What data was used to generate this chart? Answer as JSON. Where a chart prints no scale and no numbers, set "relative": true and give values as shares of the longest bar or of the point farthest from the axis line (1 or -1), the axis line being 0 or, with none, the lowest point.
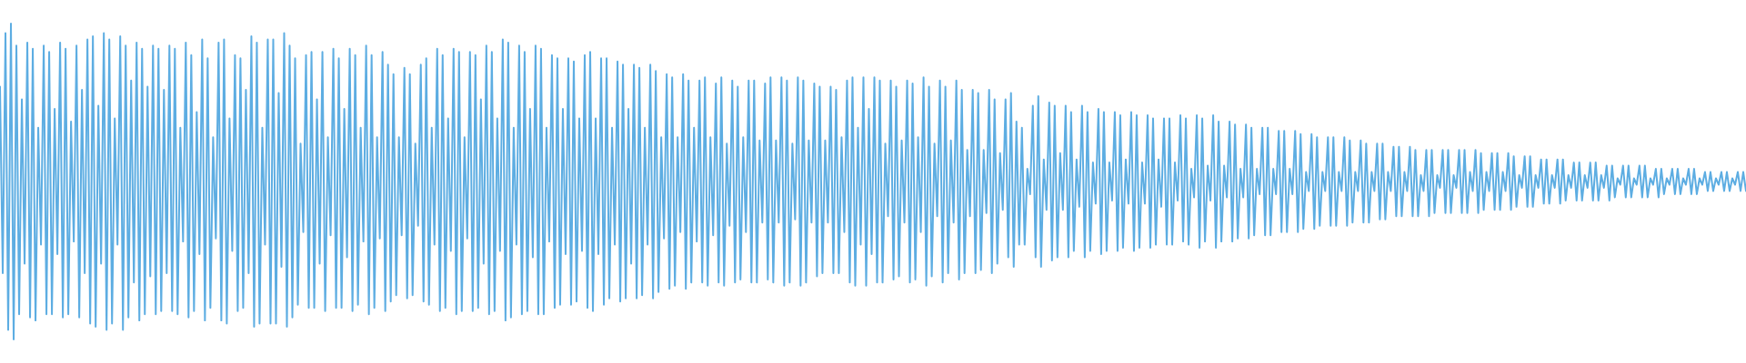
{
  "chart_data": {
    "type": "line",
    "relative": true,
    "tick_labels": false,
    "color": "#5dade2",
    "categories": [
      null,
      null,
      null,
      null,
      null,
      null,
      null,
      null,
      null,
      null,
      null,
      null,
      null,
      null,
      null,
      null,
      null,
      null,
      null,
      null,
      null,
      null,
      null,
      null,
      null,
      null,
      null,
      null,
      null,
      null,
      null,
      null,
      null,
      null,
      null,
      null,
      null,
      null,
      null,
      null,
      null,
      null,
      null,
      null,
      null,
      null,
      null,
      null,
      null,
      null,
      null,
      null,
      null,
      null,
      null,
      null,
      null,
      null,
      null,
      null,
      null,
      null,
      null,
      null,
      null,
      null,
      null,
      null,
      null,
      null,
      null,
      null,
      null,
      null,
      null,
      null,
      null,
      null,
      null,
      null,
      null,
      null,
      null,
      null,
      null,
      null,
      null,
      null,
      null,
      null,
      null,
      null,
      null,
      null,
      null,
      null,
      null,
      null,
      null,
      null,
      null,
      null,
      null,
      null,
      null,
      null,
      null,
      null,
      null,
      null,
      null,
      null,
      null,
      null,
      null,
      null,
      null,
      null,
      null,
      null,
      null,
      null,
      null,
      null,
      null,
      null,
      null,
      null,
      null,
      null,
      null,
      null,
      null,
      null,
      null,
      null,
      null,
      null,
      null,
      null,
      null,
      null,
      null,
      null,
      null,
      null,
      null,
      null,
      null,
      null,
      null,
      null,
      null,
      null,
      null,
      null,
      null,
      null,
      null,
      null,
      null,
      null,
      null,
      null,
      null,
      null,
      null,
      null,
      null,
      null,
      null,
      null,
      null,
      null,
      null,
      null,
      null,
      null,
      null,
      null,
      null,
      null,
      null,
      null,
      null,
      null,
      null,
      null,
      null,
      null,
      null,
      null,
      null,
      null,
      null,
      null,
      null,
      null,
      null,
      null,
      null,
      null,
      null,
      null,
      null,
      null,
      null,
      null,
      null,
      null,
      null,
      null,
      null,
      null,
      null,
      null,
      null,
      null,
      null,
      null,
      null,
      null,
      null,
      null,
      null,
      null,
      null,
      null,
      null,
      null,
      null,
      null,
      null,
      null,
      null,
      null,
      null,
      null,
      null,
      null,
      null,
      null,
      null,
      null,
      null,
      null,
      null,
      null,
      null,
      null,
      null,
      null,
      null,
      null,
      null,
      null,
      null,
      null,
      null,
      null,
      null,
      null,
      null,
      null,
      null,
      null,
      null,
      null,
      null,
      null,
      null,
      null,
      null,
      null,
      null,
      null,
      null,
      null,
      null,
      null,
      null,
      null,
      null,
      null,
      null,
      null,
      null,
      null,
      null,
      null,
      null,
      null,
      null,
      null,
      null,
      null,
      null,
      null,
      null,
      null,
      null,
      null,
      null,
      null,
      null,
      null,
      null,
      null,
      null,
      null,
      null,
      null,
      null,
      null,
      null,
      null,
      null,
      null,
      null,
      null,
      null,
      null,
      null,
      null,
      null,
      null,
      null,
      null,
      null,
      null,
      null,
      null,
      null,
      null,
      null,
      null,
      null,
      null,
      null,
      null,
      null,
      null,
      null,
      null,
      null,
      null,
      null,
      null,
      null,
      null,
      null,
      null,
      null,
      null,
      null,
      null,
      null,
      null,
      null,
      null,
      null,
      null,
      null,
      null,
      null,
      null,
      null,
      null,
      null,
      null,
      null,
      null,
      null,
      null,
      null,
      null,
      null,
      null,
      null,
      null,
      null,
      null,
      null,
      null,
      null,
      null,
      null,
      null,
      null,
      null,
      null,
      null,
      null,
      null,
      null,
      null,
      null,
      null,
      null,
      null,
      null,
      null,
      null,
      null,
      null,
      null,
      null,
      null,
      null,
      null,
      null,
      null,
      null,
      null,
      null,
      null,
      null,
      null,
      null,
      null,
      null,
      null,
      null,
      null,
      null,
      null,
      null,
      null,
      null,
      null,
      null,
      null,
      null,
      null,
      null,
      null,
      null,
      null,
      null,
      null,
      null,
      null,
      null,
      null,
      null,
      null,
      null,
      null,
      null,
      null,
      null,
      null,
      null,
      null,
      null,
      null,
      null,
      null,
      null,
      null,
      null,
      null,
      null,
      null,
      null,
      null,
      null,
      null,
      null,
      null,
      null,
      null,
      null,
      null,
      null,
      null,
      null,
      null,
      null,
      null,
      null,
      null,
      null,
      null,
      null,
      null,
      null,
      null,
      null,
      null,
      null,
      null,
      null,
      null,
      null,
      null,
      null,
      null,
      null,
      null,
      null,
      null,
      null,
      null,
      null,
      null,
      null,
      null,
      null,
      null,
      null,
      null,
      null,
      null,
      null,
      null,
      null,
      null,
      null,
      null,
      null,
      null,
      null,
      null,
      null,
      null,
      null,
      null,
      null,
      null,
      null,
      null,
      null,
      null,
      null,
      null,
      null,
      null,
      null,
      null,
      null,
      null,
      null,
      null,
      null,
      null,
      null,
      null,
      null,
      null,
      null,
      null,
      null,
      null,
      null,
      null,
      null,
      null,
      null,
      null,
      null,
      null,
      null,
      null,
      null,
      null,
      null,
      null,
      null,
      null,
      null,
      null,
      null,
      null,
      null,
      null,
      null,
      null,
      null,
      null,
      null,
      null,
      null,
      null,
      null,
      null,
      null,
      null,
      null,
      null,
      null,
      null,
      null,
      null,
      null,
      null,
      null,
      null,
      null,
      null,
      null,
      null,
      null,
      null,
      null,
      null,
      null,
      null,
      null,
      null,
      null,
      null,
      null,
      null,
      null,
      null,
      null,
      null,
      null,
      null,
      null,
      null,
      null,
      null,
      null,
      null,
      null,
      null,
      null,
      null,
      null,
      null,
      null,
      null,
      null,
      null,
      null,
      null,
      null,
      null
    ],
    "values": [
      0.8,
      0.21,
      0.97,
      0.03,
      1.0,
      0.0,
      0.93,
      0.08,
      0.76,
      0.24,
      0.94,
      0.07,
      0.92,
      0.06,
      0.67,
      0.3,
      0.93,
      0.08,
      0.91,
      0.08,
      0.73,
      0.27,
      0.94,
      0.07,
      0.92,
      0.08,
      0.69,
      0.31,
      0.93,
      0.07,
      0.79,
      0.21,
      0.95,
      0.05,
      0.96,
      0.04,
      0.74,
      0.24,
      0.97,
      0.03,
      0.95,
      0.05,
      0.7,
      0.3,
      0.96,
      0.03,
      0.93,
      0.07,
      0.82,
      0.18,
      0.94,
      0.06,
      0.92,
      0.08,
      0.8,
      0.2,
      0.93,
      0.08,
      0.92,
      0.09,
      0.79,
      0.21,
      0.93,
      0.09,
      0.92,
      0.08,
      0.67,
      0.31,
      0.94,
      0.07,
      0.9,
      0.09,
      0.72,
      0.27,
      0.95,
      0.06,
      0.89,
      0.1,
      0.64,
      0.32,
      0.94,
      0.06,
      0.95,
      0.05,
      0.7,
      0.28,
      0.9,
      0.09,
      0.89,
      0.1,
      0.79,
      0.21,
      0.96,
      0.04,
      0.94,
      0.05,
      0.67,
      0.3,
      0.95,
      0.05,
      0.95,
      0.05,
      0.78,
      0.23,
      0.97,
      0.04,
      0.93,
      0.07,
      0.89,
      0.11,
      0.62,
      0.34,
      0.9,
      0.1,
      0.91,
      0.1,
      0.76,
      0.24,
      0.91,
      0.09,
      0.64,
      0.33,
      0.92,
      0.1,
      0.89,
      0.1,
      0.73,
      0.26,
      0.92,
      0.09,
      0.9,
      0.11,
      0.67,
      0.31,
      0.93,
      0.08,
      0.9,
      0.1,
      0.64,
      0.32,
      0.91,
      0.09,
      0.87,
      0.12,
      0.84,
      0.14,
      0.64,
      0.33,
      0.86,
      0.13,
      0.84,
      0.14,
      0.62,
      0.36,
      0.87,
      0.12,
      0.89,
      0.11,
      0.67,
      0.3,
      0.92,
      0.09,
      0.9,
      0.1,
      0.7,
      0.28,
      0.92,
      0.08,
      0.91,
      0.09,
      0.64,
      0.32,
      0.91,
      0.09,
      0.9,
      0.1,
      0.76,
      0.24,
      0.93,
      0.08,
      0.91,
      0.09,
      0.7,
      0.28,
      0.95,
      0.06,
      0.94,
      0.07,
      0.67,
      0.3,
      0.93,
      0.08,
      0.91,
      0.09,
      0.73,
      0.26,
      0.93,
      0.08,
      0.92,
      0.08,
      0.67,
      0.31,
      0.9,
      0.1,
      0.89,
      0.11,
      0.73,
      0.27,
      0.89,
      0.11,
      0.88,
      0.12,
      0.7,
      0.28,
      0.9,
      0.1,
      0.91,
      0.09,
      0.7,
      0.27,
      0.89,
      0.11,
      0.89,
      0.13,
      0.67,
      0.3,
      0.88,
      0.12,
      0.87,
      0.13,
      0.73,
      0.24,
      0.87,
      0.13,
      0.86,
      0.14,
      0.67,
      0.3,
      0.87,
      0.13,
      0.85,
      0.15,
      0.64,
      0.32,
      0.84,
      0.16,
      0.83,
      0.17,
      0.64,
      0.34,
      0.84,
      0.16,
      0.82,
      0.18,
      0.67,
      0.31,
      0.82,
      0.18,
      0.83,
      0.17,
      0.64,
      0.33,
      0.81,
      0.18,
      0.83,
      0.17,
      0.62,
      0.36,
      0.82,
      0.18,
      0.8,
      0.19,
      0.64,
      0.34,
      0.82,
      0.18,
      0.82,
      0.18,
      0.63,
      0.37,
      0.81,
      0.19,
      0.83,
      0.18,
      0.63,
      0.37,
      0.83,
      0.17,
      0.82,
      0.18,
      0.62,
      0.38,
      0.83,
      0.17,
      0.82,
      0.18,
      0.63,
      0.37,
      0.81,
      0.2,
      0.8,
      0.21,
      0.63,
      0.37,
      0.8,
      0.21,
      0.79,
      0.21,
      0.64,
      0.34,
      0.82,
      0.18,
      0.83,
      0.17,
      0.67,
      0.3,
      0.83,
      0.17,
      0.73,
      0.27,
      0.83,
      0.18,
      0.82,
      0.18,
      0.62,
      0.39,
      0.82,
      0.19,
      0.8,
      0.2,
      0.63,
      0.37,
      0.82,
      0.18,
      0.81,
      0.19,
      0.64,
      0.34,
      0.83,
      0.17,
      0.8,
      0.2,
      0.62,
      0.39,
      0.82,
      0.18,
      0.8,
      0.21,
      0.63,
      0.37,
      0.82,
      0.19,
      0.79,
      0.21,
      0.6,
      0.39,
      0.79,
      0.21,
      0.78,
      0.22,
      0.6,
      0.4,
      0.79,
      0.21,
      0.76,
      0.24,
      0.59,
      0.41,
      0.76,
      0.26,
      0.78,
      0.23,
      0.69,
      0.3,
      0.67,
      0.3,
      0.54,
      0.46,
      0.74,
      0.26,
      0.77,
      0.23,
      0.57,
      0.41,
      0.75,
      0.25,
      0.74,
      0.26,
      0.59,
      0.41,
      0.74,
      0.26,
      0.72,
      0.28,
      0.57,
      0.42,
      0.74,
      0.26,
      0.72,
      0.28,
      0.56,
      0.43,
      0.73,
      0.27,
      0.72,
      0.28,
      0.56,
      0.44,
      0.72,
      0.28,
      0.71,
      0.29,
      0.57,
      0.43,
      0.72,
      0.28,
      0.71,
      0.29,
      0.56,
      0.43,
      0.71,
      0.29,
      0.7,
      0.3,
      0.57,
      0.42,
      0.7,
      0.3,
      0.7,
      0.3,
      0.56,
      0.44,
      0.71,
      0.31,
      0.7,
      0.3,
      0.54,
      0.45,
      0.71,
      0.29,
      0.7,
      0.31,
      0.55,
      0.44,
      0.71,
      0.29,
      0.69,
      0.31,
      0.55,
      0.45,
      0.69,
      0.31,
      0.68,
      0.32,
      0.54,
      0.45,
      0.68,
      0.32,
      0.67,
      0.33,
      0.54,
      0.46,
      0.67,
      0.33,
      0.67,
      0.33,
      0.54,
      0.46,
      0.66,
      0.34,
      0.66,
      0.34,
      0.54,
      0.46,
      0.66,
      0.34,
      0.65,
      0.35,
      0.53,
      0.47,
      0.65,
      0.35,
      0.64,
      0.36,
      0.53,
      0.47,
      0.64,
      0.36,
      0.64,
      0.36,
      0.53,
      0.47,
      0.64,
      0.36,
      0.63,
      0.37,
      0.53,
      0.47,
      0.63,
      0.37,
      0.62,
      0.37,
      0.53,
      0.47,
      0.62,
      0.38,
      0.62,
      0.38,
      0.53,
      0.47,
      0.61,
      0.39,
      0.61,
      0.39,
      0.53,
      0.47,
      0.61,
      0.39,
      0.6,
      0.39,
      0.52,
      0.47,
      0.6,
      0.39,
      0.6,
      0.4,
      0.52,
      0.48,
      0.6,
      0.4,
      0.6,
      0.4,
      0.52,
      0.48,
      0.6,
      0.4,
      0.6,
      0.4,
      0.53,
      0.47,
      0.6,
      0.4,
      0.59,
      0.41,
      0.53,
      0.47,
      0.59,
      0.41,
      0.59,
      0.41,
      0.53,
      0.47,
      0.59,
      0.41,
      0.58,
      0.42,
      0.52,
      0.48,
      0.58,
      0.42,
      0.58,
      0.42,
      0.52,
      0.48,
      0.57,
      0.43,
      0.57,
      0.43,
      0.52,
      0.48,
      0.57,
      0.43,
      0.57,
      0.44,
      0.52,
      0.48,
      0.56,
      0.44,
      0.56,
      0.44,
      0.52,
      0.48,
      0.56,
      0.44,
      0.56,
      0.44,
      0.52,
      0.48,
      0.55,
      0.44,
      0.55,
      0.45,
      0.51,
      0.49,
      0.55,
      0.45,
      0.55,
      0.45,
      0.51,
      0.49,
      0.55,
      0.45,
      0.55,
      0.45,
      0.51,
      0.49,
      0.54,
      0.45,
      0.54,
      0.46,
      0.51,
      0.49,
      0.54,
      0.46,
      0.54,
      0.46,
      0.51,
      0.49,
      0.54,
      0.46,
      0.54,
      0.46,
      0.51,
      0.49,
      0.53,
      0.47,
      0.53,
      0.47,
      0.51,
      0.49,
      0.53,
      0.47,
      0.53,
      0.47,
      0.51,
      0.49,
      0.53,
      0.47,
      0.53,
      0.47
    ]
  }
}
